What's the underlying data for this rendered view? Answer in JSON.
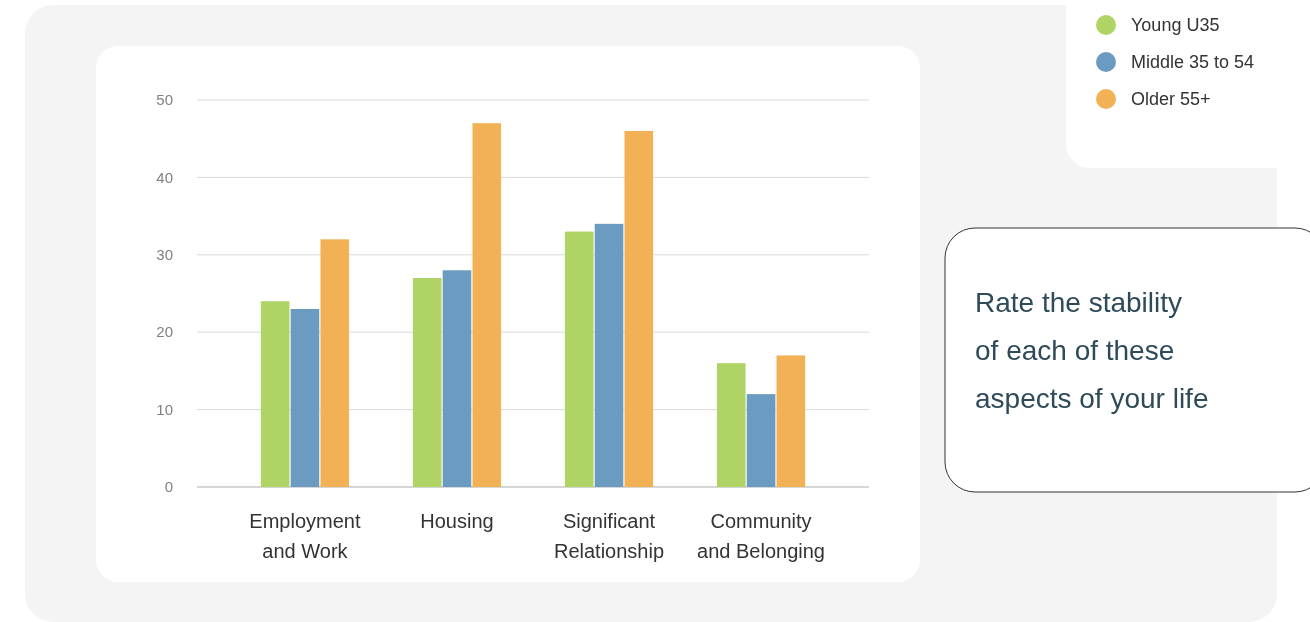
{
  "chart_data": {
    "type": "bar",
    "title": "Rate the stability of each of these aspects of your life",
    "categories": [
      "Employment and Work",
      "Housing",
      "Significant Relationship",
      "Community and Belonging"
    ],
    "series": [
      {
        "name": "Young U35",
        "color": "#b0d366",
        "values": [
          24,
          27,
          33,
          16
        ]
      },
      {
        "name": "Middle 35 to 54",
        "color": "#6b9bc0",
        "values": [
          23,
          28,
          34,
          12
        ]
      },
      {
        "name": "Older 55+",
        "color": "#f2b155",
        "values": [
          32,
          47,
          46,
          17
        ]
      }
    ],
    "ylim": [
      0,
      50
    ],
    "yticks": [
      0,
      10,
      20,
      30,
      40,
      50
    ],
    "grid": "y",
    "legend": "top right"
  }
}
